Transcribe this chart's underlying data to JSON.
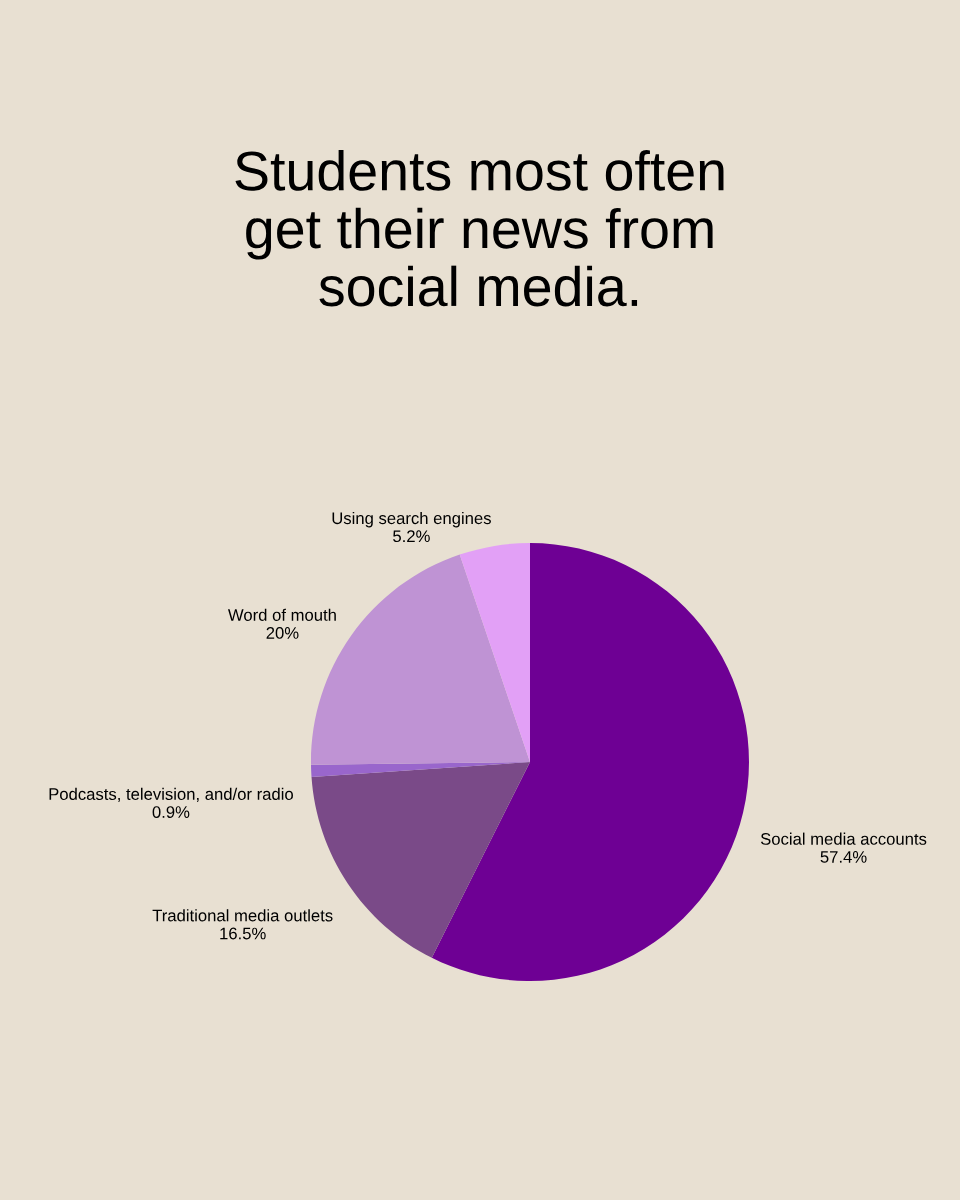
{
  "chart_data": {
    "type": "pie",
    "title": "Students most often get their news from social media.",
    "categories": [
      "Social media accounts",
      "Traditional media outlets",
      "Podcasts, television, and/or radio",
      "Word of mouth",
      "Using search engines"
    ],
    "values": [
      57.4,
      16.5,
      0.9,
      20,
      5.2
    ],
    "value_labels": [
      "57.4%",
      "16.5%",
      "0.9%",
      "20%",
      "5.2%"
    ],
    "colors": [
      "#6e0094",
      "#7a4a88",
      "#9966cc",
      "#bf93d4",
      "#e2a0f6"
    ],
    "legend": false
  }
}
